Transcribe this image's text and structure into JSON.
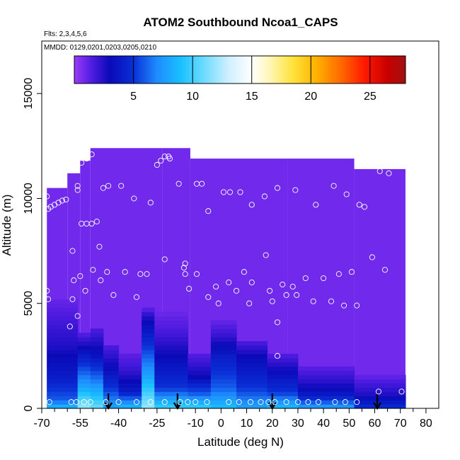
{
  "chart_data": {
    "type": "heatmap",
    "title": "ATOM2 Southbound Ncoa1_CAPS",
    "flights_label": "Flts: 2,3,4,5,6",
    "dates_label": "MMDD: 0129,0201,0203,0205,0210",
    "xlabel": "Latitude (deg N)",
    "ylabel": "Altitude (m)",
    "xlim": [
      -70,
      85
    ],
    "ylim": [
      0,
      17500
    ],
    "x_ticks": [
      -70,
      -55,
      -40,
      -25,
      -10,
      0,
      10,
      20,
      30,
      40,
      50,
      60,
      70,
      80
    ],
    "x_minor_ticks": [
      -65,
      -60,
      -50,
      -45,
      -35,
      -30,
      -20,
      -15,
      -5,
      5,
      15,
      25,
      35,
      45,
      55,
      65,
      75
    ],
    "y_ticks": [
      0,
      5000,
      10000,
      15000
    ],
    "colorbar": {
      "range": [
        0,
        28
      ],
      "ticks": [
        5,
        10,
        15,
        20,
        25
      ],
      "stops": [
        {
          "v": 0,
          "c": "#9a3cf7"
        },
        {
          "v": 1.5,
          "c": "#4e1be0"
        },
        {
          "v": 3,
          "c": "#0a0ab8"
        },
        {
          "v": 5,
          "c": "#0a2fd6"
        },
        {
          "v": 7,
          "c": "#1f8cff"
        },
        {
          "v": 9,
          "c": "#19c0ff"
        },
        {
          "v": 11,
          "c": "#6fdcff"
        },
        {
          "v": 13,
          "c": "#cdefff"
        },
        {
          "v": 15,
          "c": "#ffffff"
        },
        {
          "v": 16.5,
          "c": "#fff6b8"
        },
        {
          "v": 18.5,
          "c": "#ffe23a"
        },
        {
          "v": 20.5,
          "c": "#ffb000"
        },
        {
          "v": 22.5,
          "c": "#ff6a00"
        },
        {
          "v": 24.5,
          "c": "#ff1a00"
        },
        {
          "v": 26.5,
          "c": "#c90000"
        },
        {
          "v": 28,
          "c": "#a01010"
        }
      ]
    },
    "coverage": [
      {
        "lat": [
          -68,
          -60
        ],
        "alt": [
          0,
          10500
        ]
      },
      {
        "lat": [
          -60,
          -55
        ],
        "alt": [
          0,
          11200
        ]
      },
      {
        "lat": [
          -55,
          -51
        ],
        "alt": [
          0,
          11800
        ]
      },
      {
        "lat": [
          -51,
          -23
        ],
        "alt": [
          0,
          12400
        ]
      },
      {
        "lat": [
          -23,
          -12
        ],
        "alt": [
          0,
          12400
        ]
      },
      {
        "lat": [
          -12,
          26
        ],
        "alt": [
          0,
          11900
        ]
      },
      {
        "lat": [
          26,
          52
        ],
        "alt": [
          0,
          11900
        ]
      },
      {
        "lat": [
          52,
          72
        ],
        "alt": [
          0,
          11400
        ]
      }
    ],
    "background_value": 0.8,
    "columns": [
      {
        "lat": [
          -68,
          -56
        ],
        "profile": [
          [
            0,
            9
          ],
          [
            400,
            6
          ],
          [
            1500,
            4
          ],
          [
            3000,
            2.5
          ],
          [
            4500,
            1.5
          ],
          [
            5200,
            1
          ]
        ]
      },
      {
        "lat": [
          -56,
          -51
        ],
        "profile": [
          [
            0,
            12
          ],
          [
            1000,
            8
          ],
          [
            2500,
            4
          ],
          [
            3500,
            1.5
          ]
        ]
      },
      {
        "lat": [
          -51,
          -46
        ],
        "profile": [
          [
            0,
            11
          ],
          [
            1200,
            7
          ],
          [
            2500,
            3.5
          ],
          [
            3800,
            1.5
          ]
        ]
      },
      {
        "lat": [
          -46,
          -40
        ],
        "profile": [
          [
            0,
            8
          ],
          [
            1000,
            5
          ],
          [
            2000,
            3
          ],
          [
            3000,
            1.5
          ]
        ]
      },
      {
        "lat": [
          -40,
          -31
        ],
        "profile": [
          [
            0,
            9
          ],
          [
            800,
            4
          ],
          [
            1800,
            2
          ],
          [
            2600,
            1.2
          ]
        ]
      },
      {
        "lat": [
          -31,
          -26
        ],
        "profile": [
          [
            0,
            12
          ],
          [
            1500,
            8
          ],
          [
            3000,
            5
          ],
          [
            4400,
            2.5
          ],
          [
            4800,
            1
          ]
        ]
      },
      {
        "lat": [
          -26,
          -13
        ],
        "profile": [
          [
            0,
            10
          ],
          [
            1000,
            5
          ],
          [
            2500,
            3
          ],
          [
            3800,
            1.5
          ],
          [
            4500,
            1
          ]
        ]
      },
      {
        "lat": [
          -13,
          -4
        ],
        "profile": [
          [
            0,
            10
          ],
          [
            700,
            6
          ],
          [
            1500,
            3
          ],
          [
            2500,
            1.5
          ]
        ]
      },
      {
        "lat": [
          -4,
          6
        ],
        "profile": [
          [
            0,
            9
          ],
          [
            1000,
            6
          ],
          [
            2500,
            4
          ],
          [
            3500,
            2
          ],
          [
            4200,
            1
          ]
        ]
      },
      {
        "lat": [
          6,
          18
        ],
        "profile": [
          [
            0,
            8
          ],
          [
            1000,
            5
          ],
          [
            2500,
            3
          ],
          [
            3200,
            1.5
          ]
        ]
      },
      {
        "lat": [
          18,
          30
        ],
        "profile": [
          [
            0,
            9
          ],
          [
            800,
            5
          ],
          [
            1800,
            3
          ],
          [
            2600,
            1.3
          ]
        ]
      },
      {
        "lat": [
          30,
          52
        ],
        "profile": [
          [
            0,
            8
          ],
          [
            600,
            4
          ],
          [
            1200,
            2.5
          ],
          [
            2000,
            1.2
          ]
        ]
      },
      {
        "lat": [
          52,
          72
        ],
        "profile": [
          [
            0,
            5
          ],
          [
            700,
            2.5
          ],
          [
            1500,
            1.2
          ]
        ]
      }
    ],
    "samples": [
      [
        -68,
        10100
      ],
      [
        -67.5,
        9500
      ],
      [
        -66.5,
        9600
      ],
      [
        -65,
        9700
      ],
      [
        -63.5,
        9800
      ],
      [
        -62,
        9900
      ],
      [
        -60.5,
        9950
      ],
      [
        -68,
        5600
      ],
      [
        -67.5,
        5200
      ],
      [
        -58,
        7500
      ],
      [
        -57.5,
        6100
      ],
      [
        -58,
        5200
      ],
      [
        -56,
        4400
      ],
      [
        -59,
        3900
      ],
      [
        -56,
        10400
      ],
      [
        -56,
        10600
      ],
      [
        -54.5,
        11700
      ],
      [
        -52.5,
        11900
      ],
      [
        -50.5,
        12100
      ],
      [
        -54.5,
        8800
      ],
      [
        -52.5,
        8800
      ],
      [
        -50.5,
        8800
      ],
      [
        -48.5,
        8900
      ],
      [
        -47.5,
        7700
      ],
      [
        -55,
        6300
      ],
      [
        -53,
        5600
      ],
      [
        -50,
        6600
      ],
      [
        -47,
        6100
      ],
      [
        -44.5,
        6500
      ],
      [
        -42,
        5400
      ],
      [
        -37.5,
        6500
      ],
      [
        -33,
        5300
      ],
      [
        -46,
        10500
      ],
      [
        -44,
        10600
      ],
      [
        -39,
        10600
      ],
      [
        -34,
        10000
      ],
      [
        -27.5,
        9800
      ],
      [
        -25,
        11600
      ],
      [
        -23.5,
        11800
      ],
      [
        -22,
        12000
      ],
      [
        -20.5,
        12000
      ],
      [
        -20,
        11900
      ],
      [
        -31.5,
        6400
      ],
      [
        -29,
        6400
      ],
      [
        -22,
        7100
      ],
      [
        -14.5,
        6700
      ],
      [
        -14,
        6900
      ],
      [
        -14,
        6400
      ],
      [
        -12.5,
        5700
      ],
      [
        -16.5,
        10700
      ],
      [
        -9.5,
        10700
      ],
      [
        -7.5,
        10700
      ],
      [
        -5,
        9400
      ],
      [
        1,
        10300
      ],
      [
        3.5,
        10300
      ],
      [
        7.5,
        10300
      ],
      [
        -9.5,
        6400
      ],
      [
        -5,
        5300
      ],
      [
        -2,
        5800
      ],
      [
        -1,
        5000
      ],
      [
        3,
        6000
      ],
      [
        6,
        5600
      ],
      [
        9,
        6500
      ],
      [
        11,
        5000
      ],
      [
        12,
        6000
      ],
      [
        12,
        9700
      ],
      [
        17,
        10100
      ],
      [
        22,
        10500
      ],
      [
        29,
        10400
      ],
      [
        37,
        9700
      ],
      [
        44,
        10600
      ],
      [
        49,
        10200
      ],
      [
        54,
        9700
      ],
      [
        56,
        9600
      ],
      [
        62,
        11300
      ],
      [
        65.5,
        11200
      ],
      [
        17.5,
        7300
      ],
      [
        19,
        5600
      ],
      [
        20,
        5100
      ],
      [
        22,
        4100
      ],
      [
        22,
        2500
      ],
      [
        24,
        5900
      ],
      [
        25.5,
        5400
      ],
      [
        28,
        5800
      ],
      [
        29.5,
        5400
      ],
      [
        33,
        6200
      ],
      [
        36,
        5100
      ],
      [
        40,
        6200
      ],
      [
        43,
        5100
      ],
      [
        46,
        6400
      ],
      [
        48,
        4900
      ],
      [
        51,
        6500
      ],
      [
        53,
        4900
      ],
      [
        59,
        7200
      ],
      [
        64,
        6600
      ],
      [
        61.5,
        800
      ],
      [
        70.5,
        800
      ],
      [
        -67,
        300
      ],
      [
        -58.5,
        300
      ],
      [
        -56.5,
        300
      ],
      [
        -53.5,
        300
      ],
      [
        -51,
        300
      ],
      [
        -45,
        300
      ],
      [
        -40,
        300
      ],
      [
        -33,
        300
      ],
      [
        -27.5,
        300
      ],
      [
        -22,
        300
      ],
      [
        -16,
        300
      ],
      [
        -13,
        300
      ],
      [
        -10,
        300
      ],
      [
        -5.5,
        300
      ],
      [
        3,
        300
      ],
      [
        7,
        300
      ],
      [
        11.5,
        300
      ],
      [
        15.5,
        300
      ],
      [
        18.5,
        300
      ],
      [
        21,
        300
      ],
      [
        25.5,
        300
      ],
      [
        30,
        300
      ],
      [
        34,
        300
      ],
      [
        38,
        300
      ],
      [
        44.5,
        300
      ],
      [
        48.5,
        300
      ],
      [
        53,
        300
      ]
    ],
    "arrows_lat": [
      -44,
      -17,
      20,
      61
    ]
  }
}
